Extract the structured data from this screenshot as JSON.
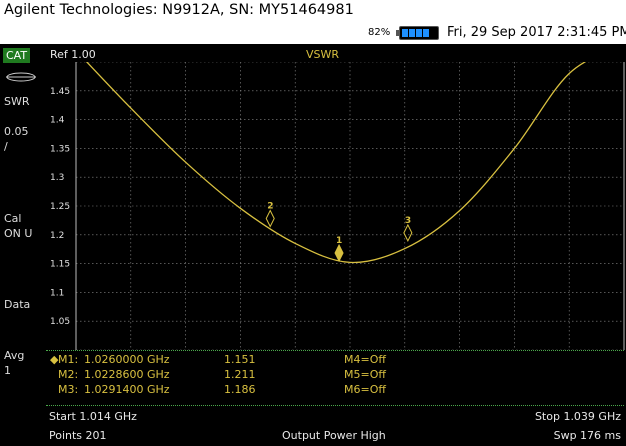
{
  "window": {
    "title": "Agilent Technologies: N9912A, SN: MY51464981"
  },
  "status": {
    "battery_percent": "82%",
    "battery_level": 0.82,
    "datetime": "Fri, 29 Sep 2017 2:31:45 PM"
  },
  "sidebar": {
    "mode": "CAT",
    "items": [
      "SWR",
      "0.05",
      "/",
      "Cal",
      "ON U",
      "Data",
      "Avg",
      "1"
    ]
  },
  "screen": {
    "ref": "Ref 1.00",
    "measurement": "VSWR"
  },
  "chart_data": {
    "type": "line",
    "title": "VSWR",
    "xlabel": "",
    "ylabel": "",
    "xlim": [
      1.014,
      1.039
    ],
    "ylim": [
      1.0,
      1.5
    ],
    "yticks": [
      "1.45",
      "1.4",
      "1.35",
      "1.3",
      "1.25",
      "1.2",
      "1.15",
      "1.1",
      "1.05"
    ],
    "grid": true,
    "series": [
      {
        "color": "#d8c040",
        "x": [
          1.014,
          1.0165,
          1.019,
          1.0215,
          1.024,
          1.0265,
          1.029,
          1.0315,
          1.034,
          1.0365,
          1.039
        ],
        "y": [
          1.52,
          1.42,
          1.326,
          1.246,
          1.185,
          1.152,
          1.176,
          1.242,
          1.35,
          1.48,
          1.53
        ]
      }
    ],
    "markers": [
      {
        "id": "1",
        "x": 1.026,
        "y": 1.151,
        "active": true
      },
      {
        "id": "2",
        "x": 1.02286,
        "y": 1.211,
        "active": false
      },
      {
        "id": "3",
        "x": 1.02914,
        "y": 1.186,
        "active": false
      }
    ]
  },
  "marker_table": [
    {
      "label": "M1:",
      "freq": "1.0260000 GHz",
      "value": "1.151",
      "extra": "M4=Off",
      "active": true
    },
    {
      "label": "M2:",
      "freq": "1.0228600 GHz",
      "value": "1.211",
      "extra": "M5=Off",
      "active": false
    },
    {
      "label": "M3:",
      "freq": "1.0291400 GHz",
      "value": "1.186",
      "extra": "M6=Off",
      "active": false
    }
  ],
  "footer": {
    "start": "Start 1.014 GHz",
    "stop": "Stop 1.039 GHz",
    "points": "Points 201",
    "power": "Output Power High",
    "sweep": "Swp 176 ms"
  },
  "colors": {
    "trace": "#d8c040",
    "grid": "#8a8a8a",
    "mode_bg": "#1f7a1f"
  }
}
